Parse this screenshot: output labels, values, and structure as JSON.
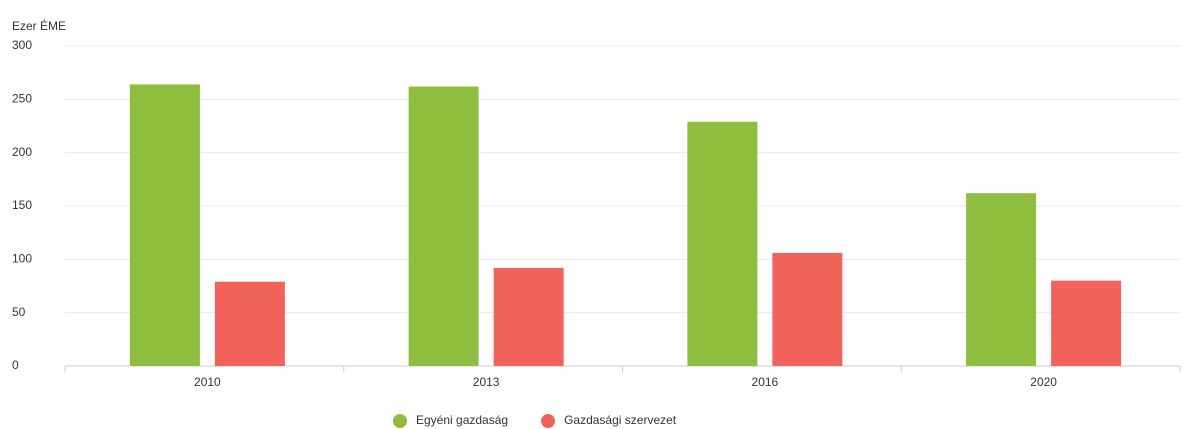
{
  "chart_data": {
    "type": "bar",
    "y_axis_label": "Ezer ÉME",
    "categories": [
      "2010",
      "2013",
      "2016",
      "2020"
    ],
    "series": [
      {
        "name": "Egyéni gazdaság",
        "color": "#8fbe3f",
        "values": [
          264,
          262,
          229,
          162
        ]
      },
      {
        "name": "Gazdasági szervezet",
        "color": "#f0625a",
        "values": [
          79,
          92,
          106,
          80
        ]
      }
    ],
    "ylim": [
      0,
      300
    ],
    "yticks": [
      0,
      50,
      100,
      150,
      200,
      250,
      300
    ],
    "grid": true,
    "legend": "bottom"
  }
}
